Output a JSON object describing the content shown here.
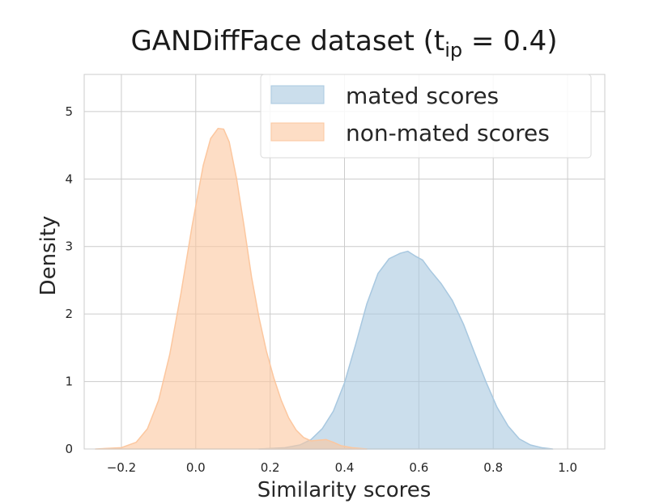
{
  "chart_data": {
    "type": "area",
    "title": "GANDiffFace dataset (t",
    "title_subscript": "ip",
    "title_suffix": " = 0.4)",
    "xlabel": "Similarity scores",
    "ylabel": "Density",
    "xlim": [
      -0.3,
      1.1
    ],
    "ylim": [
      0,
      5.55
    ],
    "xticks": [
      -0.2,
      0.0,
      0.2,
      0.4,
      0.6,
      0.8,
      1.0
    ],
    "xtick_labels": [
      "−0.2",
      "0.0",
      "0.2",
      "0.4",
      "0.6",
      "0.8",
      "1.0"
    ],
    "yticks": [
      0,
      1,
      2,
      3,
      4,
      5
    ],
    "ytick_labels": [
      "0",
      "1",
      "2",
      "3",
      "4",
      "5"
    ],
    "grid": true,
    "legend_position": "top-right",
    "series": [
      {
        "name": "mated scores",
        "color": "#a8c8e0",
        "x": [
          0.17,
          0.24,
          0.28,
          0.31,
          0.34,
          0.37,
          0.4,
          0.43,
          0.46,
          0.49,
          0.52,
          0.55,
          0.57,
          0.59,
          0.61,
          0.63,
          0.66,
          0.69,
          0.72,
          0.75,
          0.78,
          0.81,
          0.84,
          0.87,
          0.9,
          0.93,
          0.96
        ],
        "y": [
          0.0,
          0.02,
          0.06,
          0.14,
          0.3,
          0.56,
          0.98,
          1.55,
          2.15,
          2.6,
          2.82,
          2.9,
          2.93,
          2.86,
          2.8,
          2.65,
          2.45,
          2.2,
          1.85,
          1.42,
          1.0,
          0.62,
          0.34,
          0.15,
          0.06,
          0.02,
          0.0
        ]
      },
      {
        "name": "non-mated scores",
        "color": "#fcc79f",
        "x": [
          -0.27,
          -0.2,
          -0.16,
          -0.13,
          -0.1,
          -0.07,
          -0.04,
          -0.01,
          0.02,
          0.04,
          0.06,
          0.075,
          0.09,
          0.11,
          0.13,
          0.15,
          0.17,
          0.19,
          0.21,
          0.23,
          0.25,
          0.27,
          0.29,
          0.31,
          0.33,
          0.35,
          0.37,
          0.39,
          0.42,
          0.46
        ],
        "y": [
          0.0,
          0.02,
          0.1,
          0.3,
          0.72,
          1.4,
          2.3,
          3.3,
          4.2,
          4.6,
          4.75,
          4.74,
          4.55,
          4.0,
          3.3,
          2.55,
          1.95,
          1.45,
          1.05,
          0.72,
          0.46,
          0.28,
          0.17,
          0.12,
          0.13,
          0.14,
          0.1,
          0.05,
          0.02,
          0.0
        ]
      }
    ]
  }
}
